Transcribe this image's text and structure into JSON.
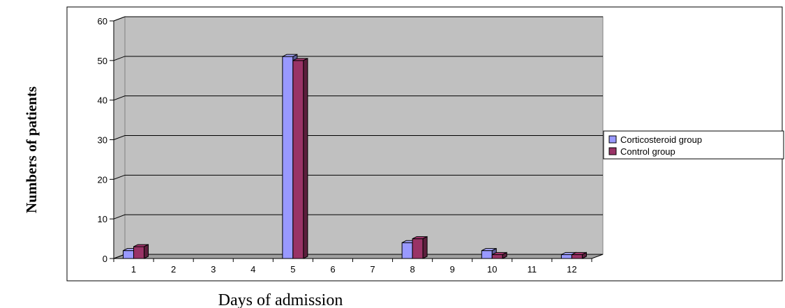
{
  "chart_data": {
    "type": "bar",
    "title": "",
    "xlabel": "Days of admission",
    "ylabel": "Numbers of patients",
    "categories": [
      "1",
      "2",
      "3",
      "4",
      "5",
      "6",
      "7",
      "8",
      "9",
      "10",
      "11",
      "12"
    ],
    "ylim": [
      0,
      60
    ],
    "yticks": [
      "0",
      "10",
      "20",
      "30",
      "40",
      "50",
      "60"
    ],
    "grid": true,
    "legend_position": "right",
    "series": [
      {
        "name": "Corticosteroid group",
        "color": "#9999ff",
        "values": [
          2,
          0,
          0,
          0,
          51,
          0,
          0,
          4,
          0,
          2,
          0,
          1
        ]
      },
      {
        "name": "Control group",
        "color": "#993366",
        "values": [
          3,
          0,
          0,
          0,
          50,
          0,
          0,
          5,
          0,
          1,
          0,
          1
        ]
      }
    ],
    "plot_background": "#c0c0c0"
  }
}
